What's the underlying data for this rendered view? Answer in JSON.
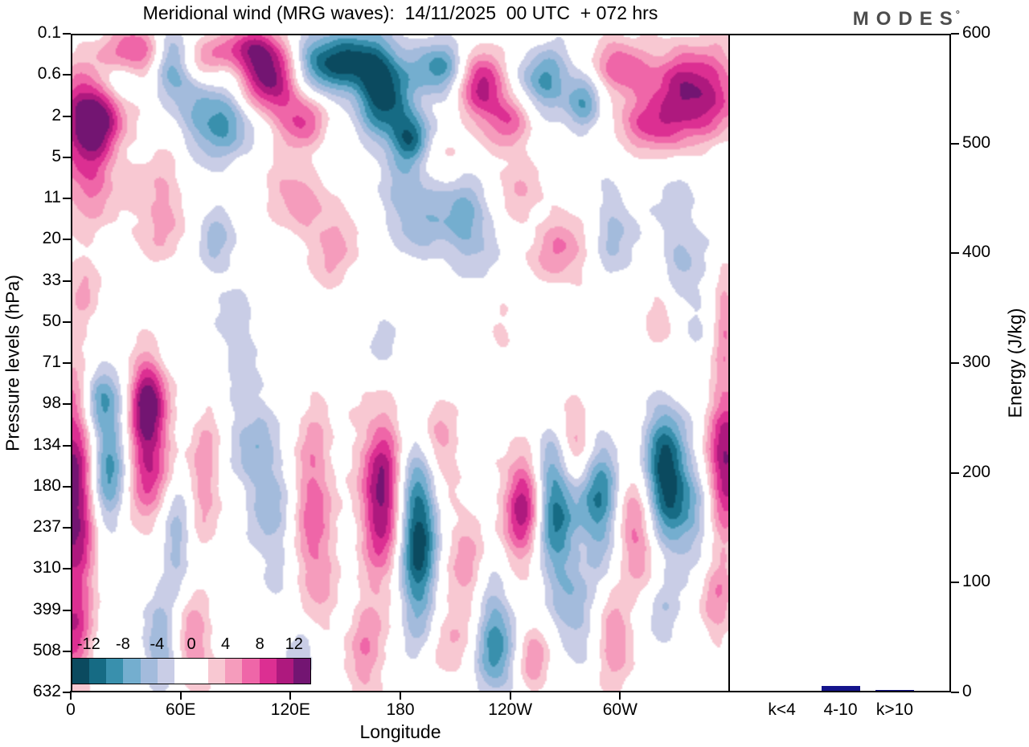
{
  "title": "Meridional wind (MRG waves):  14/11/2025  00 UTC  + 072 hrs",
  "logo": {
    "text": "MODES",
    "sup": "°"
  },
  "chart_data": [
    {
      "type": "heatmap",
      "subtype": "filled-contour",
      "title": "Meridional wind (MRG waves):  14/11/2025  00 UTC  + 072 hrs",
      "xlabel": "Longitude",
      "ylabel": "Pressure levels (hPa)",
      "x_range_deg": [
        0,
        360
      ],
      "x_ticks": [
        {
          "deg": 0,
          "label": "0"
        },
        {
          "deg": 60,
          "label": "60E"
        },
        {
          "deg": 120,
          "label": "120E"
        },
        {
          "deg": 180,
          "label": "180"
        },
        {
          "deg": 240,
          "label": "120W"
        },
        {
          "deg": 300,
          "label": "60W"
        }
      ],
      "y_ticks": [
        "0.1",
        "0.6",
        "2",
        "5",
        "11",
        "20",
        "33",
        "50",
        "71",
        "98",
        "134",
        "180",
        "237",
        "310",
        "399",
        "508",
        "632"
      ],
      "colorbar": {
        "tick_labels": [
          "-12",
          "-8",
          "-4",
          "0",
          "4",
          "8",
          "12"
        ],
        "levels": [
          -14,
          -12,
          -10,
          -8,
          -6,
          -4,
          -2,
          0,
          2,
          4,
          6,
          8,
          10,
          12,
          14
        ],
        "colors": [
          "#0b4a5f",
          "#166b84",
          "#3990ad",
          "#74aecf",
          "#a3bbdc",
          "#c9cde6",
          "#ffffff",
          "#ffffff",
          "#f8c8d2",
          "#f59cbc",
          "#ef66a8",
          "#dc2f92",
          "#ae197e",
          "#731572"
        ]
      },
      "field_blobs_format": "[x_frac, y_frac, sigma_x, sigma_y, amplitude]",
      "field_blobs": [
        [
          0.03,
          0.12,
          0.035,
          0.045,
          15
        ],
        [
          0.1,
          0.03,
          0.04,
          0.03,
          9
        ],
        [
          0.07,
          0.07,
          0.03,
          0.025,
          -6
        ],
        [
          0.155,
          0.045,
          0.025,
          0.035,
          -11
        ],
        [
          0.225,
          0.13,
          0.035,
          0.04,
          -10
        ],
        [
          0.19,
          0.04,
          0.025,
          0.025,
          6
        ],
        [
          0.3,
          0.06,
          0.035,
          0.045,
          14
        ],
        [
          0.26,
          0.02,
          0.03,
          0.02,
          7
        ],
        [
          0.355,
          0.13,
          0.025,
          0.03,
          7
        ],
        [
          0.4,
          0.04,
          0.05,
          0.035,
          -13
        ],
        [
          0.475,
          0.09,
          0.03,
          0.05,
          -12
        ],
        [
          0.52,
          0.16,
          0.022,
          0.03,
          -12
        ],
        [
          0.56,
          0.05,
          0.03,
          0.03,
          -8
        ],
        [
          0.625,
          0.08,
          0.025,
          0.04,
          11
        ],
        [
          0.67,
          0.13,
          0.02,
          0.03,
          7
        ],
        [
          0.72,
          0.07,
          0.025,
          0.035,
          -9
        ],
        [
          0.78,
          0.1,
          0.02,
          0.03,
          -7
        ],
        [
          0.84,
          0.05,
          0.03,
          0.03,
          8
        ],
        [
          0.95,
          0.09,
          0.045,
          0.05,
          13
        ],
        [
          0.88,
          0.14,
          0.03,
          0.03,
          8
        ],
        [
          0.02,
          0.22,
          0.03,
          0.05,
          7
        ],
        [
          0.13,
          0.27,
          0.03,
          0.06,
          5
        ],
        [
          0.22,
          0.31,
          0.025,
          0.04,
          -4
        ],
        [
          0.33,
          0.24,
          0.03,
          0.04,
          5
        ],
        [
          0.4,
          0.31,
          0.03,
          0.05,
          5
        ],
        [
          0.52,
          0.26,
          0.04,
          0.05,
          -5
        ],
        [
          0.6,
          0.29,
          0.035,
          0.05,
          -6
        ],
        [
          0.68,
          0.23,
          0.03,
          0.04,
          4
        ],
        [
          0.74,
          0.33,
          0.03,
          0.04,
          6
        ],
        [
          0.83,
          0.3,
          0.025,
          0.06,
          -4
        ],
        [
          0.93,
          0.33,
          0.03,
          0.1,
          -4
        ],
        [
          0.55,
          0.18,
          0.03,
          0.025,
          5
        ],
        [
          0.25,
          0.45,
          0.03,
          0.05,
          -3
        ],
        [
          0.48,
          0.47,
          0.02,
          0.04,
          -3
        ],
        [
          0.65,
          0.45,
          0.02,
          0.04,
          3
        ],
        [
          0.9,
          0.43,
          0.02,
          0.05,
          4
        ],
        [
          0.995,
          0.44,
          0.012,
          0.06,
          5
        ],
        [
          0.02,
          0.38,
          0.02,
          0.04,
          4
        ],
        [
          0.005,
          0.7,
          0.025,
          0.12,
          15
        ],
        [
          0.05,
          0.66,
          0.022,
          0.07,
          -11
        ],
        [
          0.04,
          0.55,
          0.02,
          0.035,
          -7
        ],
        [
          0.115,
          0.55,
          0.02,
          0.04,
          8
        ],
        [
          0.115,
          0.64,
          0.022,
          0.08,
          11
        ],
        [
          0.16,
          0.76,
          0.02,
          0.06,
          -6
        ],
        [
          0.2,
          0.68,
          0.02,
          0.08,
          6
        ],
        [
          0.26,
          0.62,
          0.02,
          0.06,
          -4
        ],
        [
          0.3,
          0.71,
          0.022,
          0.1,
          -5
        ],
        [
          0.37,
          0.73,
          0.022,
          0.13,
          7
        ],
        [
          0.475,
          0.7,
          0.025,
          0.09,
          13
        ],
        [
          0.525,
          0.76,
          0.022,
          0.1,
          -14
        ],
        [
          0.56,
          0.62,
          0.02,
          0.05,
          6
        ],
        [
          0.6,
          0.8,
          0.02,
          0.07,
          5
        ],
        [
          0.645,
          0.93,
          0.022,
          0.06,
          -9
        ],
        [
          0.69,
          0.72,
          0.022,
          0.06,
          12
        ],
        [
          0.735,
          0.72,
          0.022,
          0.08,
          -12
        ],
        [
          0.77,
          0.62,
          0.02,
          0.05,
          8
        ],
        [
          0.8,
          0.7,
          0.022,
          0.07,
          -10
        ],
        [
          0.86,
          0.76,
          0.02,
          0.06,
          7
        ],
        [
          0.905,
          0.67,
          0.022,
          0.07,
          -14
        ],
        [
          0.95,
          0.73,
          0.02,
          0.06,
          -6
        ],
        [
          0.995,
          0.65,
          0.02,
          0.08,
          13
        ],
        [
          0.83,
          0.92,
          0.02,
          0.05,
          6
        ],
        [
          0.77,
          0.88,
          0.02,
          0.05,
          -5
        ],
        [
          0.7,
          0.95,
          0.02,
          0.04,
          5
        ],
        [
          0.57,
          0.93,
          0.02,
          0.05,
          4
        ],
        [
          0.45,
          0.94,
          0.02,
          0.06,
          6
        ],
        [
          0.35,
          0.95,
          0.02,
          0.04,
          -4
        ],
        [
          0.13,
          0.93,
          0.018,
          0.05,
          -6
        ],
        [
          0.185,
          0.93,
          0.018,
          0.05,
          6
        ],
        [
          0.0,
          0.92,
          0.02,
          0.05,
          6
        ],
        [
          0.98,
          0.86,
          0.02,
          0.05,
          5
        ],
        [
          0.9,
          0.89,
          0.02,
          0.04,
          -4
        ]
      ]
    },
    {
      "type": "bar",
      "categories": [
        "k<4",
        "4-10",
        "k>10"
      ],
      "values": [
        0.2,
        4.5,
        1.0
      ],
      "ylabel": "Energy (J/kg)",
      "ylim": [
        0,
        600
      ],
      "y_ticks": [
        0,
        100,
        200,
        300,
        400,
        500,
        600
      ],
      "bar_color": "#14148c",
      "legend": "none",
      "grid": false
    }
  ]
}
